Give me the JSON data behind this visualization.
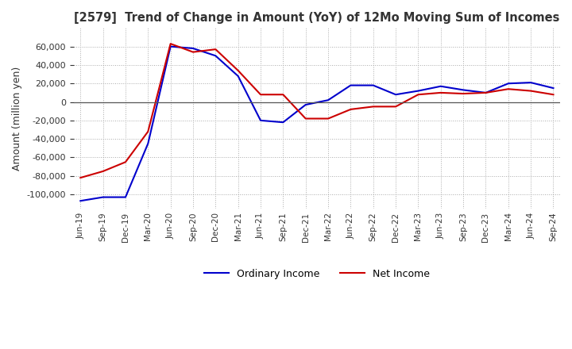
{
  "title": "[2579]  Trend of Change in Amount (YoY) of 12Mo Moving Sum of Incomes",
  "ylabel": "Amount (million yen)",
  "xlabel": "",
  "background_color": "#ffffff",
  "grid_color": "#aaaaaa",
  "title_color": "#333333",
  "ordinary_income_color": "#0000cc",
  "net_income_color": "#cc0000",
  "x_labels": [
    "Jun-19",
    "Sep-19",
    "Dec-19",
    "Mar-20",
    "Jun-20",
    "Sep-20",
    "Dec-20",
    "Mar-21",
    "Jun-21",
    "Sep-21",
    "Dec-21",
    "Mar-22",
    "Jun-22",
    "Sep-22",
    "Dec-22",
    "Mar-23",
    "Jun-23",
    "Sep-23",
    "Dec-23",
    "Mar-24",
    "Jun-24",
    "Sep-24"
  ],
  "ordinary_income": [
    -107000,
    -103000,
    -103000,
    -45000,
    60000,
    58000,
    50000,
    28000,
    -20000,
    -22000,
    -3000,
    2000,
    18000,
    18000,
    8000,
    12000,
    17000,
    13000,
    10000,
    20000,
    21000,
    15000
  ],
  "net_income": [
    -82000,
    -75000,
    -65000,
    -32000,
    63000,
    54000,
    57000,
    34000,
    8000,
    8000,
    -18000,
    -18000,
    -8000,
    -5000,
    -5000,
    8000,
    10000,
    9000,
    10000,
    14000,
    12000,
    8000
  ],
  "ylim": [
    -115000,
    80000
  ],
  "yticks": [
    -100000,
    -80000,
    -60000,
    -40000,
    -20000,
    0,
    20000,
    40000,
    60000
  ],
  "figsize": [
    7.2,
    4.4
  ],
  "dpi": 100
}
